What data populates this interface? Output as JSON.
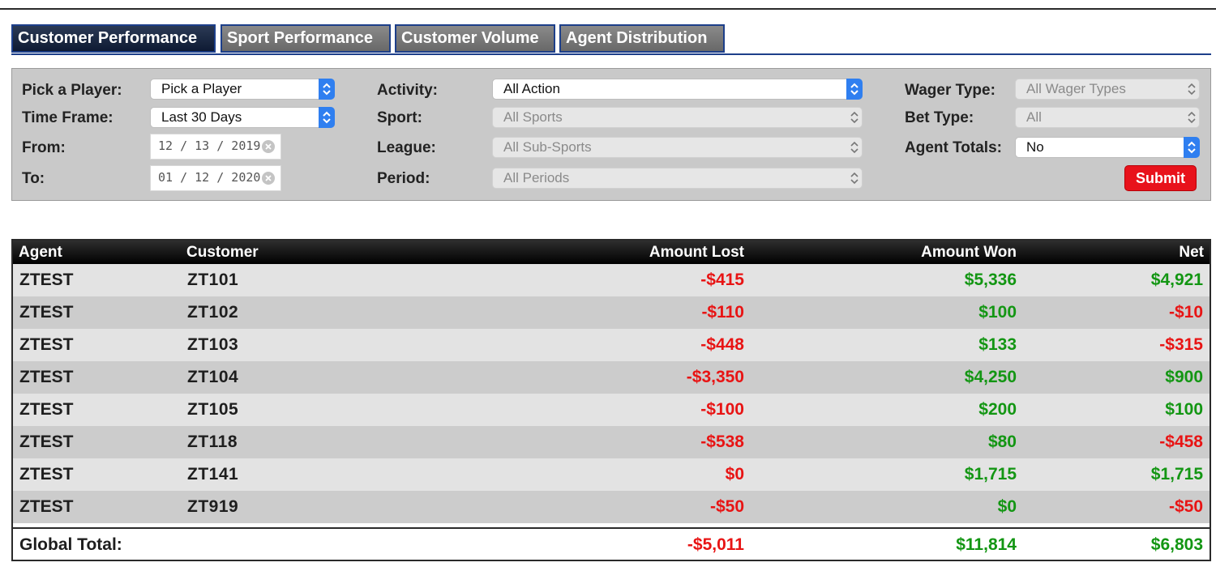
{
  "tabs": [
    {
      "label": "Customer Performance",
      "active": true
    },
    {
      "label": "Sport Performance",
      "active": false
    },
    {
      "label": "Customer Volume",
      "active": false
    },
    {
      "label": "Agent Distribution",
      "active": false
    }
  ],
  "filters": {
    "player_label": "Pick a Player:",
    "player_value": "Pick a Player",
    "timeframe_label": "Time Frame:",
    "timeframe_value": "Last 30 Days",
    "from_label": "From:",
    "from_value": "12 / 13 / 2019",
    "to_label": "To:",
    "to_value": "01 / 12 / 2020",
    "activity_label": "Activity:",
    "activity_value": "All Action",
    "sport_label": "Sport:",
    "sport_value": "All Sports",
    "league_label": "League:",
    "league_value": "All Sub-Sports",
    "period_label": "Period:",
    "period_value": "All Periods",
    "wager_type_label": "Wager Type:",
    "wager_type_value": "All Wager Types",
    "bet_type_label": "Bet Type:",
    "bet_type_value": "All",
    "agent_totals_label": "Agent Totals:",
    "agent_totals_value": "No",
    "submit_label": "Submit"
  },
  "table": {
    "headers": {
      "agent": "Agent",
      "customer": "Customer",
      "amount_lost": "Amount Lost",
      "amount_won": "Amount Won",
      "net": "Net"
    },
    "rows": [
      {
        "agent": "ZTEST",
        "customer": "ZT101",
        "lost": "-$415",
        "won": "$5,336",
        "net": "$4,921"
      },
      {
        "agent": "ZTEST",
        "customer": "ZT102",
        "lost": "-$110",
        "won": "$100",
        "net": "-$10"
      },
      {
        "agent": "ZTEST",
        "customer": "ZT103",
        "lost": "-$448",
        "won": "$133",
        "net": "-$315"
      },
      {
        "agent": "ZTEST",
        "customer": "ZT104",
        "lost": "-$3,350",
        "won": "$4,250",
        "net": "$900"
      },
      {
        "agent": "ZTEST",
        "customer": "ZT105",
        "lost": "-$100",
        "won": "$200",
        "net": "$100"
      },
      {
        "agent": "ZTEST",
        "customer": "ZT118",
        "lost": "-$538",
        "won": "$80",
        "net": "-$458"
      },
      {
        "agent": "ZTEST",
        "customer": "ZT141",
        "lost": "$0",
        "won": "$1,715",
        "net": "$1,715"
      },
      {
        "agent": "ZTEST",
        "customer": "ZT919",
        "lost": "-$50",
        "won": "$0",
        "net": "-$50"
      }
    ],
    "total": {
      "label": "Global Total:",
      "lost": "-$5,011",
      "won": "$11,814",
      "net": "$6,803"
    }
  },
  "colors": {
    "positive": "#139613",
    "negative": "#e81414",
    "accent": "#1d3f8a",
    "submit": "#e8121b"
  },
  "icons": {
    "select_arrow": "up-down-chevron-icon",
    "date_clear": "clear-circle-icon"
  }
}
